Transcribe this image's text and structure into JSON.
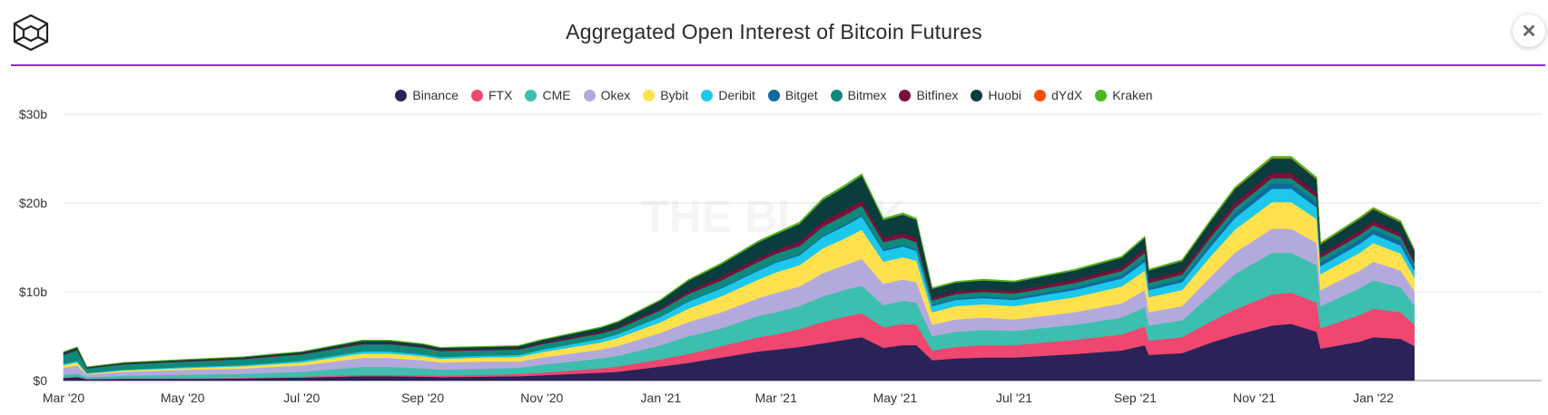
{
  "header": {
    "title": "Aggregated Open Interest of Bitcoin Futures",
    "close_symbol": "✕",
    "logo_icon": "cube-logo-icon"
  },
  "watermark": "THE BLOCK",
  "colors": {
    "Binance": "#2b2257",
    "FTX": "#ef476f",
    "CME": "#3cbfae",
    "Okex": "#b4a9dc",
    "Bybit": "#ffe14d",
    "Deribit": "#1ec8ec",
    "Bitget": "#0f6aa0",
    "Bitmex": "#0f8a7a",
    "Bitfinex": "#7a0f3a",
    "Huobi": "#0a3d3d",
    "dYdX": "#ff4d00",
    "Kraken": "#4cb51e"
  },
  "chart_data": {
    "type": "area",
    "stacked": true,
    "title": "Aggregated Open Interest of Bitcoin Futures",
    "xlabel": "",
    "ylabel": "",
    "y_ticks": [
      "$0",
      "$10b",
      "$20b",
      "$30b"
    ],
    "y_tick_values": [
      0,
      10,
      20,
      30
    ],
    "ylim": [
      0,
      30
    ],
    "y_unit": "billion USD",
    "x_ticks": [
      "Mar '20",
      "May '20",
      "Jul '20",
      "Sep '20",
      "Nov '20",
      "Jan '21",
      "Mar '21",
      "May '21",
      "Jul '21",
      "Sep '21",
      "Nov '21",
      "Jan '22"
    ],
    "x_tick_dates": [
      "2020-03-01",
      "2020-05-01",
      "2020-07-01",
      "2020-09-01",
      "2020-11-01",
      "2021-01-01",
      "2021-03-01",
      "2021-05-01",
      "2021-07-01",
      "2021-09-01",
      "2021-11-01",
      "2022-01-01"
    ],
    "grid": true,
    "legend_position": "top-center",
    "x": [
      "2020-03-01",
      "2020-03-08",
      "2020-03-13",
      "2020-04-01",
      "2020-05-01",
      "2020-06-01",
      "2020-06-15",
      "2020-07-01",
      "2020-08-01",
      "2020-08-15",
      "2020-09-01",
      "2020-09-10",
      "2020-10-01",
      "2020-10-20",
      "2020-11-01",
      "2020-12-01",
      "2020-12-10",
      "2021-01-01",
      "2021-01-15",
      "2021-02-01",
      "2021-02-20",
      "2021-03-01",
      "2021-03-13",
      "2021-03-25",
      "2021-04-05",
      "2021-04-14",
      "2021-04-25",
      "2021-05-05",
      "2021-05-12",
      "2021-05-20",
      "2021-06-01",
      "2021-06-15",
      "2021-07-01",
      "2021-08-01",
      "2021-08-25",
      "2021-09-06",
      "2021-09-08",
      "2021-09-25",
      "2021-10-10",
      "2021-10-22",
      "2021-11-10",
      "2021-11-20",
      "2021-12-03",
      "2021-12-05",
      "2021-12-25",
      "2022-01-01",
      "2022-01-15",
      "2022-01-22"
    ],
    "series": [
      {
        "name": "Binance",
        "values": [
          0.3,
          0.4,
          0.15,
          0.2,
          0.2,
          0.25,
          0.3,
          0.35,
          0.5,
          0.5,
          0.45,
          0.4,
          0.45,
          0.5,
          0.6,
          0.9,
          1.0,
          1.6,
          2.0,
          2.6,
          3.3,
          3.5,
          3.8,
          4.2,
          4.6,
          4.9,
          3.7,
          4.0,
          4.0,
          2.3,
          2.5,
          2.6,
          2.6,
          3.0,
          3.4,
          4.0,
          2.9,
          3.1,
          4.3,
          5.1,
          6.2,
          6.4,
          5.5,
          3.6,
          4.4,
          4.9,
          4.7,
          3.9
        ]
      },
      {
        "name": "FTX",
        "values": [
          0.05,
          0.06,
          0.04,
          0.05,
          0.06,
          0.07,
          0.08,
          0.1,
          0.15,
          0.15,
          0.15,
          0.15,
          0.2,
          0.25,
          0.3,
          0.5,
          0.6,
          0.8,
          1.0,
          1.3,
          1.6,
          1.7,
          2.0,
          2.4,
          2.6,
          2.7,
          2.3,
          2.4,
          2.3,
          1.1,
          1.3,
          1.4,
          1.4,
          1.6,
          1.8,
          2.1,
          1.6,
          1.8,
          2.4,
          2.9,
          3.5,
          3.5,
          3.3,
          2.3,
          3.0,
          3.2,
          3.0,
          2.4
        ]
      },
      {
        "name": "CME",
        "values": [
          0.3,
          0.35,
          0.2,
          0.3,
          0.4,
          0.45,
          0.5,
          0.55,
          0.9,
          0.9,
          0.8,
          0.7,
          0.7,
          0.7,
          0.9,
          1.1,
          1.2,
          1.6,
          2.0,
          2.0,
          2.4,
          2.5,
          2.6,
          2.9,
          3.0,
          3.1,
          2.5,
          2.6,
          2.5,
          1.6,
          1.7,
          1.7,
          1.6,
          1.7,
          1.9,
          2.2,
          1.7,
          1.9,
          3.0,
          4.0,
          4.7,
          4.5,
          4.2,
          2.5,
          3.0,
          3.2,
          2.8,
          2.2
        ]
      },
      {
        "name": "Okex",
        "values": [
          0.8,
          0.9,
          0.3,
          0.45,
          0.55,
          0.6,
          0.65,
          0.7,
          1.0,
          1.0,
          0.9,
          0.8,
          0.8,
          0.7,
          0.8,
          1.0,
          1.1,
          1.4,
          1.6,
          1.8,
          2.0,
          2.2,
          2.2,
          2.6,
          2.8,
          3.0,
          2.4,
          2.4,
          2.3,
          1.3,
          1.4,
          1.4,
          1.3,
          1.4,
          1.6,
          1.9,
          1.5,
          1.6,
          2.1,
          2.4,
          2.7,
          2.7,
          2.5,
          1.8,
          2.0,
          2.1,
          1.9,
          1.6
        ]
      },
      {
        "name": "Bybit",
        "values": [
          0.3,
          0.35,
          0.1,
          0.15,
          0.2,
          0.25,
          0.3,
          0.35,
          0.5,
          0.5,
          0.45,
          0.4,
          0.45,
          0.5,
          0.6,
          0.8,
          0.9,
          1.2,
          1.5,
          1.8,
          2.1,
          2.3,
          2.4,
          2.8,
          3.0,
          3.3,
          2.5,
          2.5,
          2.4,
          1.4,
          1.5,
          1.5,
          1.5,
          1.7,
          1.9,
          2.2,
          1.7,
          1.8,
          2.3,
          2.6,
          3.0,
          3.0,
          2.7,
          1.8,
          2.0,
          2.1,
          1.9,
          1.5
        ]
      },
      {
        "name": "Deribit",
        "values": [
          0.15,
          0.15,
          0.08,
          0.1,
          0.12,
          0.15,
          0.15,
          0.2,
          0.25,
          0.25,
          0.22,
          0.2,
          0.22,
          0.25,
          0.3,
          0.4,
          0.45,
          0.6,
          0.8,
          0.9,
          1.0,
          1.1,
          1.1,
          1.3,
          1.4,
          1.5,
          1.2,
          1.2,
          1.1,
          0.7,
          0.7,
          0.7,
          0.7,
          0.8,
          0.9,
          1.0,
          0.8,
          0.9,
          1.1,
          1.3,
          1.5,
          1.5,
          1.3,
          0.9,
          1.0,
          1.0,
          0.9,
          0.8
        ]
      },
      {
        "name": "Bitget",
        "values": [
          0,
          0,
          0,
          0,
          0,
          0,
          0,
          0,
          0,
          0,
          0,
          0,
          0,
          0,
          0,
          0,
          0,
          0.05,
          0.05,
          0.1,
          0.1,
          0.1,
          0.15,
          0.15,
          0.2,
          0.2,
          0.2,
          0.2,
          0.2,
          0.15,
          0.15,
          0.2,
          0.2,
          0.3,
          0.35,
          0.4,
          0.3,
          0.35,
          0.45,
          0.55,
          0.6,
          0.6,
          0.55,
          0.45,
          0.5,
          0.5,
          0.5,
          0.45
        ]
      },
      {
        "name": "Bitmex",
        "values": [
          1.0,
          1.2,
          0.5,
          0.6,
          0.6,
          0.65,
          0.7,
          0.7,
          0.8,
          0.8,
          0.75,
          0.7,
          0.6,
          0.6,
          0.6,
          0.6,
          0.6,
          0.7,
          0.8,
          0.8,
          0.9,
          0.9,
          0.9,
          1.0,
          1.0,
          1.0,
          0.8,
          0.8,
          0.8,
          0.5,
          0.5,
          0.5,
          0.5,
          0.5,
          0.5,
          0.6,
          0.5,
          0.5,
          0.6,
          0.6,
          0.6,
          0.6,
          0.6,
          0.5,
          0.5,
          0.5,
          0.5,
          0.4
        ]
      },
      {
        "name": "Bitfinex",
        "values": [
          0.1,
          0.1,
          0.05,
          0.05,
          0.06,
          0.07,
          0.08,
          0.08,
          0.1,
          0.1,
          0.1,
          0.1,
          0.1,
          0.1,
          0.12,
          0.15,
          0.15,
          0.2,
          0.3,
          0.4,
          0.4,
          0.4,
          0.5,
          0.6,
          0.6,
          0.6,
          0.5,
          0.5,
          0.5,
          0.3,
          0.3,
          0.3,
          0.3,
          0.4,
          0.4,
          0.5,
          0.4,
          0.4,
          0.5,
          0.6,
          0.6,
          0.6,
          0.5,
          0.4,
          0.5,
          0.5,
          0.4,
          0.4
        ]
      },
      {
        "name": "Huobi",
        "values": [
          0.2,
          0.25,
          0.1,
          0.12,
          0.15,
          0.15,
          0.17,
          0.2,
          0.3,
          0.3,
          0.28,
          0.25,
          0.28,
          0.3,
          0.35,
          0.5,
          0.6,
          0.9,
          1.2,
          1.4,
          1.8,
          1.8,
          2.0,
          2.4,
          2.6,
          2.8,
          2.0,
          2.1,
          2.0,
          1.0,
          1.0,
          1.0,
          1.0,
          1.0,
          1.1,
          1.2,
          1.0,
          1.1,
          1.3,
          1.5,
          1.6,
          1.6,
          1.5,
          1.1,
          1.3,
          1.3,
          1.2,
          1.0
        ]
      },
      {
        "name": "dYdX",
        "values": [
          0,
          0,
          0,
          0,
          0,
          0,
          0,
          0,
          0,
          0,
          0,
          0,
          0,
          0,
          0,
          0,
          0,
          0,
          0,
          0,
          0,
          0,
          0,
          0,
          0,
          0,
          0,
          0,
          0,
          0,
          0,
          0,
          0,
          0,
          0,
          0.02,
          0.02,
          0.03,
          0.04,
          0.05,
          0.06,
          0.06,
          0.06,
          0.05,
          0.05,
          0.05,
          0.05,
          0.04
        ]
      },
      {
        "name": "Kraken",
        "values": [
          0.05,
          0.05,
          0.03,
          0.03,
          0.04,
          0.04,
          0.05,
          0.05,
          0.06,
          0.06,
          0.06,
          0.05,
          0.05,
          0.05,
          0.06,
          0.08,
          0.08,
          0.1,
          0.12,
          0.15,
          0.15,
          0.15,
          0.2,
          0.2,
          0.2,
          0.2,
          0.18,
          0.18,
          0.18,
          0.12,
          0.12,
          0.12,
          0.12,
          0.13,
          0.14,
          0.15,
          0.12,
          0.13,
          0.15,
          0.18,
          0.2,
          0.2,
          0.18,
          0.15,
          0.15,
          0.15,
          0.15,
          0.13
        ]
      }
    ]
  }
}
